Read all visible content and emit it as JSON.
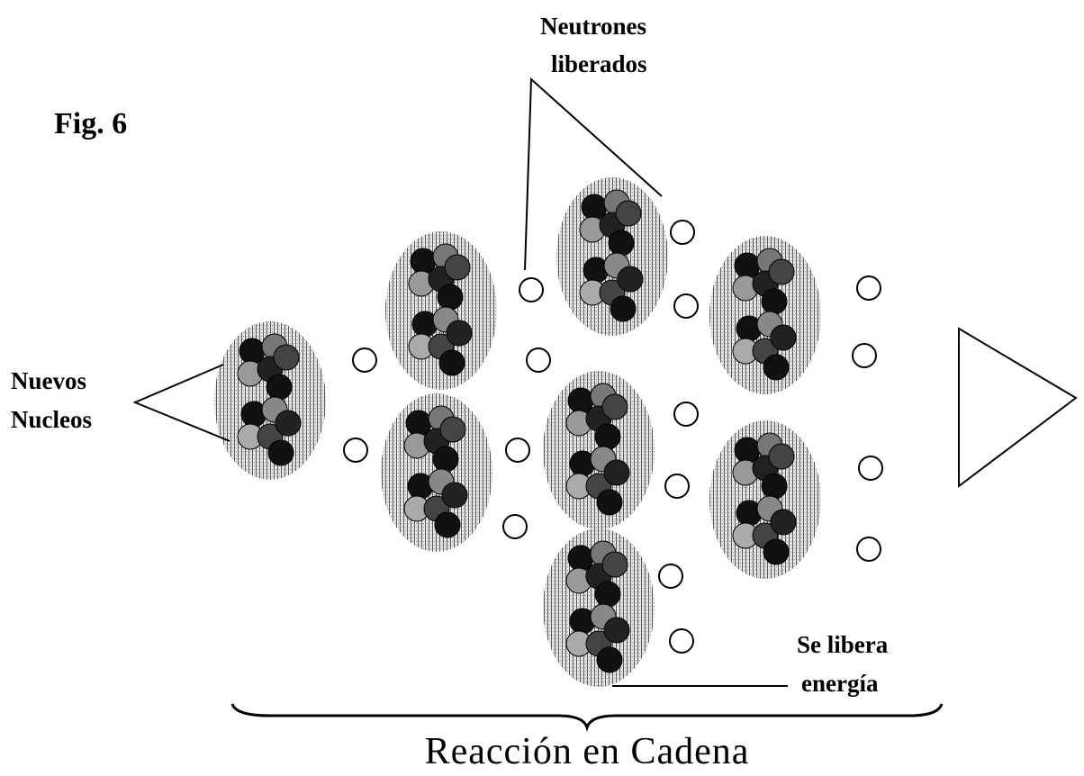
{
  "figure": {
    "label": "Fig. 6",
    "labels": {
      "neutrons": [
        "Neutrones",
        "liberados"
      ],
      "nuclei": [
        "Nuevos",
        "Nucleos"
      ],
      "energy": [
        "Se libera",
        "energía"
      ]
    },
    "caption": "Reacción en Cadena"
  }
}
